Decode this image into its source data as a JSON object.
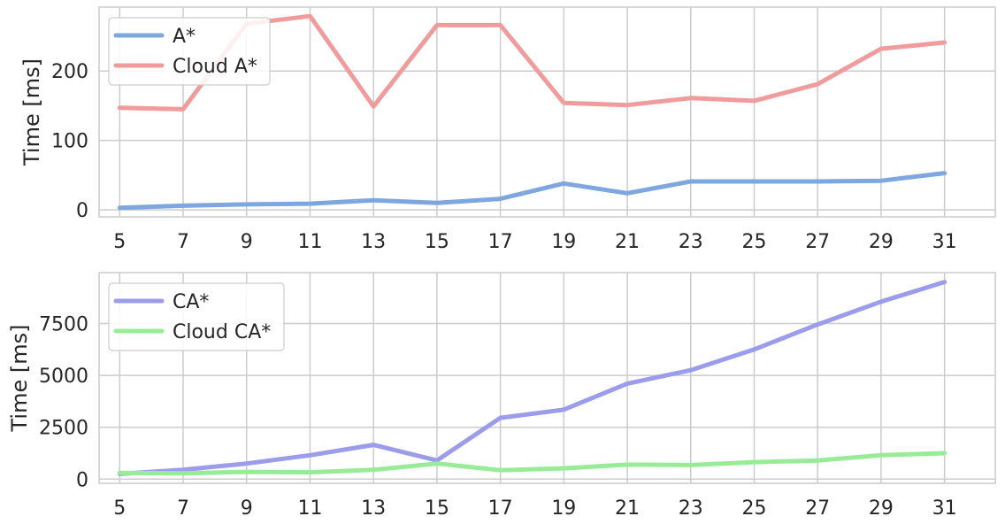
{
  "chart_data": [
    {
      "type": "line",
      "x": [
        5,
        7,
        9,
        11,
        13,
        15,
        17,
        19,
        21,
        23,
        25,
        27,
        29,
        31
      ],
      "xticks": [
        "5",
        "7",
        "9",
        "11",
        "13",
        "15",
        "17",
        "19",
        "21",
        "23",
        "25",
        "27",
        "29",
        "31"
      ],
      "ylabel": "Time [ms]",
      "ylim": [
        -10,
        292
      ],
      "yticks": [
        0,
        100,
        200
      ],
      "ytick_labels": [
        "0",
        "100",
        "200"
      ],
      "grid": true,
      "legend_position": "top-left",
      "series": [
        {
          "name": "A*",
          "color": "#7fa7df",
          "values": [
            3,
            6,
            8,
            9,
            14,
            10,
            16,
            38,
            24,
            41,
            41,
            41,
            42,
            53
          ]
        },
        {
          "name": "Cloud A*",
          "color": "#f09c9c",
          "values": [
            147,
            145,
            268,
            279,
            149,
            266,
            266,
            154,
            151,
            161,
            157,
            181,
            232,
            241
          ]
        }
      ]
    },
    {
      "type": "line",
      "x": [
        5,
        7,
        9,
        11,
        13,
        15,
        17,
        19,
        21,
        23,
        25,
        27,
        29,
        31
      ],
      "xticks": [
        "5",
        "7",
        "9",
        "11",
        "13",
        "15",
        "17",
        "19",
        "21",
        "23",
        "25",
        "27",
        "29",
        "31"
      ],
      "ylabel": "Time [ms]",
      "ylim": [
        -200,
        9950
      ],
      "yticks": [
        0,
        2500,
        5000,
        7500
      ],
      "ytick_labels": [
        "0",
        "2500",
        "5000",
        "7500"
      ],
      "grid": true,
      "legend_position": "top-left",
      "series": [
        {
          "name": "CA*",
          "color": "#9c9cec",
          "values": [
            250,
            450,
            750,
            1150,
            1650,
            900,
            2950,
            3350,
            4600,
            5250,
            6250,
            7450,
            8550,
            9500
          ]
        },
        {
          "name": "Cloud CA*",
          "color": "#98ec98",
          "values": [
            300,
            280,
            350,
            330,
            450,
            750,
            430,
            520,
            700,
            680,
            820,
            900,
            1150,
            1250
          ]
        }
      ]
    }
  ]
}
